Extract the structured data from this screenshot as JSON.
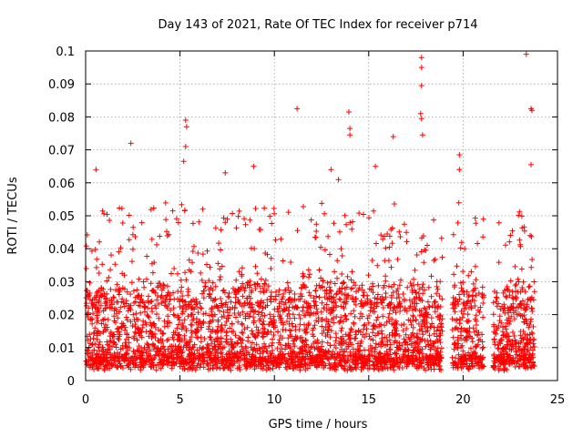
{
  "chart_data": {
    "type": "scatter",
    "title": "Day 143 of 2021, Rate Of TEC Index for receiver p714",
    "xlabel": "GPS time / hours",
    "ylabel": "ROTI / TECUs",
    "xlim": [
      0,
      25
    ],
    "ylim": [
      0,
      0.1
    ],
    "x_ticks": [
      "0",
      "5",
      "10",
      "15",
      "20",
      "25"
    ],
    "y_ticks": [
      "0",
      "0.01",
      "0.02",
      "0.03",
      "0.04",
      "0.05",
      "0.06",
      "0.07",
      "0.08",
      "0.09",
      "0.1"
    ],
    "grid": true,
    "marker": "+",
    "color": "#ff0000",
    "data_gaps_hours": [
      [
        18.9,
        19.4
      ],
      [
        21.1,
        21.6
      ]
    ],
    "notable_points": [
      {
        "x": 0.55,
        "y": 0.064
      },
      {
        "x": 2.4,
        "y": 0.072
      },
      {
        "x": 5.3,
        "y": 0.079
      },
      {
        "x": 5.35,
        "y": 0.077
      },
      {
        "x": 5.2,
        "y": 0.0665
      },
      {
        "x": 5.3,
        "y": 0.071
      },
      {
        "x": 7.4,
        "y": 0.063
      },
      {
        "x": 8.9,
        "y": 0.065
      },
      {
        "x": 11.2,
        "y": 0.0825
      },
      {
        "x": 13.0,
        "y": 0.064
      },
      {
        "x": 13.4,
        "y": 0.061
      },
      {
        "x": 13.95,
        "y": 0.0815
      },
      {
        "x": 14.0,
        "y": 0.0765
      },
      {
        "x": 14.0,
        "y": 0.0745
      },
      {
        "x": 15.35,
        "y": 0.065
      },
      {
        "x": 16.3,
        "y": 0.074
      },
      {
        "x": 17.8,
        "y": 0.098
      },
      {
        "x": 17.8,
        "y": 0.095
      },
      {
        "x": 17.8,
        "y": 0.0895
      },
      {
        "x": 17.75,
        "y": 0.081
      },
      {
        "x": 17.8,
        "y": 0.0795
      },
      {
        "x": 17.85,
        "y": 0.0745
      },
      {
        "x": 19.8,
        "y": 0.0685
      },
      {
        "x": 19.8,
        "y": 0.064
      },
      {
        "x": 23.35,
        "y": 0.099
      },
      {
        "x": 23.6,
        "y": 0.0825
      },
      {
        "x": 23.65,
        "y": 0.082
      },
      {
        "x": 23.6,
        "y": 0.0655
      }
    ]
  }
}
